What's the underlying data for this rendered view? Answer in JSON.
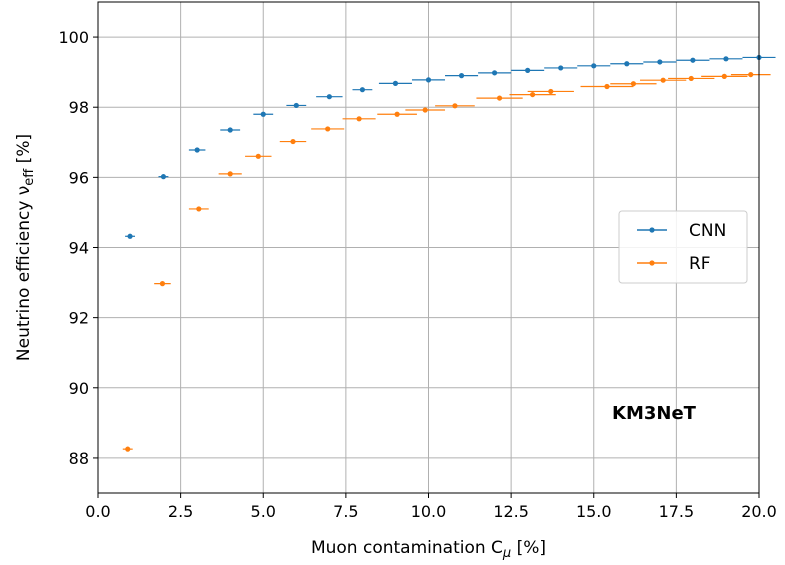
{
  "chart_data": {
    "type": "scatter",
    "xlabel": "Muon contamination C",
    "xlabel_sub": "μ",
    "xlabel_unit": " [%]",
    "ylabel": "Neutrino efficiency ν",
    "ylabel_sub": "eff",
    "ylabel_unit": " [%]",
    "xlim": [
      0,
      20
    ],
    "ylim": [
      87,
      101
    ],
    "xticks": [
      0,
      2.5,
      5,
      7.5,
      10,
      12.5,
      15,
      17.5,
      20
    ],
    "xtick_labels": [
      "0.0",
      "2.5",
      "5.0",
      "7.5",
      "10.0",
      "12.5",
      "15.0",
      "17.5",
      "20.0"
    ],
    "yticks": [
      88,
      90,
      92,
      94,
      96,
      98,
      100
    ],
    "ytick_labels": [
      "88",
      "90",
      "92",
      "94",
      "96",
      "98",
      "100"
    ],
    "grid": true,
    "legend_position": "center-right",
    "annotation": "KM3NeT",
    "series": [
      {
        "name": "CNN",
        "color": "#1f77b4",
        "points": [
          {
            "x": 0.97,
            "y": 94.32,
            "xerr": 0.15
          },
          {
            "x": 1.98,
            "y": 96.02,
            "xerr": 0.15
          },
          {
            "x": 3.0,
            "y": 96.78,
            "xerr": 0.25
          },
          {
            "x": 4.0,
            "y": 97.35,
            "xerr": 0.3
          },
          {
            "x": 5.0,
            "y": 97.8,
            "xerr": 0.3
          },
          {
            "x": 6.0,
            "y": 98.05,
            "xerr": 0.3
          },
          {
            "x": 7.0,
            "y": 98.3,
            "xerr": 0.4
          },
          {
            "x": 8.0,
            "y": 98.5,
            "xerr": 0.3
          },
          {
            "x": 9.0,
            "y": 98.68,
            "xerr": 0.5
          },
          {
            "x": 10.0,
            "y": 98.78,
            "xerr": 0.5
          },
          {
            "x": 11.0,
            "y": 98.9,
            "xerr": 0.5
          },
          {
            "x": 12.0,
            "y": 98.98,
            "xerr": 0.5
          },
          {
            "x": 13.0,
            "y": 99.05,
            "xerr": 0.5
          },
          {
            "x": 14.0,
            "y": 99.12,
            "xerr": 0.5
          },
          {
            "x": 15.0,
            "y": 99.18,
            "xerr": 0.5
          },
          {
            "x": 16.0,
            "y": 99.24,
            "xerr": 0.5
          },
          {
            "x": 17.0,
            "y": 99.29,
            "xerr": 0.5
          },
          {
            "x": 18.0,
            "y": 99.34,
            "xerr": 0.5
          },
          {
            "x": 19.0,
            "y": 99.38,
            "xerr": 0.5
          },
          {
            "x": 20.0,
            "y": 99.42,
            "xerr": 0.5
          }
        ]
      },
      {
        "name": "RF",
        "color": "#ff7f0e",
        "points": [
          {
            "x": 0.9,
            "y": 88.25,
            "xerr": 0.15
          },
          {
            "x": 1.95,
            "y": 92.97,
            "xerr": 0.25
          },
          {
            "x": 3.05,
            "y": 95.1,
            "xerr": 0.3
          },
          {
            "x": 4.0,
            "y": 96.1,
            "xerr": 0.35
          },
          {
            "x": 4.85,
            "y": 96.6,
            "xerr": 0.4
          },
          {
            "x": 5.9,
            "y": 97.02,
            "xerr": 0.4
          },
          {
            "x": 6.95,
            "y": 97.38,
            "xerr": 0.5
          },
          {
            "x": 7.9,
            "y": 97.67,
            "xerr": 0.5
          },
          {
            "x": 9.05,
            "y": 97.8,
            "xerr": 0.6
          },
          {
            "x": 9.9,
            "y": 97.92,
            "xerr": 0.6
          },
          {
            "x": 10.8,
            "y": 98.04,
            "xerr": 0.6
          },
          {
            "x": 12.15,
            "y": 98.26,
            "xerr": 0.7
          },
          {
            "x": 13.15,
            "y": 98.36,
            "xerr": 0.7
          },
          {
            "x": 13.7,
            "y": 98.45,
            "xerr": 0.7
          },
          {
            "x": 15.4,
            "y": 98.59,
            "xerr": 0.8
          },
          {
            "x": 16.2,
            "y": 98.67,
            "xerr": 0.7
          },
          {
            "x": 17.1,
            "y": 98.77,
            "xerr": 0.7
          },
          {
            "x": 17.95,
            "y": 98.82,
            "xerr": 0.7
          },
          {
            "x": 18.95,
            "y": 98.88,
            "xerr": 0.7
          },
          {
            "x": 19.75,
            "y": 98.93,
            "xerr": 0.6
          }
        ]
      }
    ]
  }
}
